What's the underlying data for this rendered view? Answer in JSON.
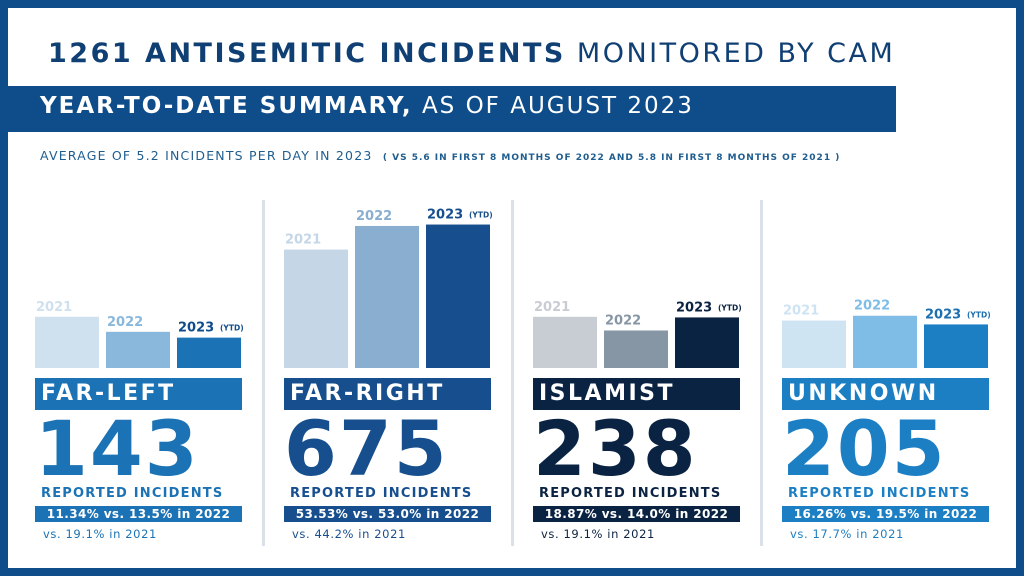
{
  "header": {
    "title_bold": "1261 ANTISEMITIC INCIDENTS",
    "title_rest": "MONITORED BY CAM",
    "banner_bold": "YEAR-TO-DATE SUMMARY,",
    "banner_rest": "AS OF AUGUST 2023",
    "average_text": "AVERAGE OF 5.2 INCIDENTS PER DAY IN 2023",
    "average_note": "( VS 5.6 IN FIRST 8 MONTHS OF 2022 AND 5.8 IN FIRST 8 MONTHS OF 2021 )"
  },
  "colors": {
    "frame": "#0f4c8a",
    "title": "#0f3f73"
  },
  "chart_data": [
    {
      "type": "bar",
      "panel": "far-left",
      "categories": [
        "2021",
        "2022",
        "2023"
      ],
      "ytd_label": "(YTD)",
      "values": [
        19.1,
        13.5,
        11.34
      ],
      "unit": "% of incidents",
      "category": "FAR-LEFT",
      "count": "143",
      "reported": "REPORTED INCIDENTS",
      "compare_2022": "11.34% vs. 13.5% in 2022",
      "compare_2021": "vs. 19.1% in 2021",
      "bar_colors": [
        "#cfe0ee",
        "#8ab8dc",
        "#1b72b4"
      ],
      "accent": "#1b72b4",
      "label_colors": [
        "#cfe0ee",
        "#8ab8dc",
        "#0f4c8a"
      ]
    },
    {
      "type": "bar",
      "panel": "far-right",
      "categories": [
        "2021",
        "2022",
        "2023"
      ],
      "ytd_label": "(YTD)",
      "values": [
        44.2,
        53.0,
        53.53
      ],
      "unit": "% of incidents",
      "category": "FAR-RIGHT",
      "count": "675",
      "reported": "REPORTED INCIDENTS",
      "compare_2022": "53.53% vs. 53.0% in 2022",
      "compare_2021": "vs. 44.2% in 2021",
      "bar_colors": [
        "#c5d6e6",
        "#8aaed0",
        "#174f8e"
      ],
      "accent": "#174f8e",
      "label_colors": [
        "#c5d6e6",
        "#8aaed0",
        "#174f8e"
      ]
    },
    {
      "type": "bar",
      "panel": "islamist",
      "categories": [
        "2021",
        "2022",
        "2023"
      ],
      "ytd_label": "(YTD)",
      "values": [
        19.1,
        14.0,
        18.87
      ],
      "unit": "% of incidents",
      "category": "ISLAMIST",
      "count": "238",
      "reported": "REPORTED INCIDENTS",
      "compare_2022": "18.87% vs. 14.0% in 2022",
      "compare_2021": "vs. 19.1% in 2021",
      "bar_colors": [
        "#c8cdd3",
        "#8796a5",
        "#0b2342"
      ],
      "accent": "#0b2342",
      "label_colors": [
        "#c8cdd3",
        "#8796a5",
        "#0b2342"
      ]
    },
    {
      "type": "bar",
      "panel": "unknown",
      "categories": [
        "2021",
        "2022",
        "2023"
      ],
      "ytd_label": "(YTD)",
      "values": [
        17.7,
        19.5,
        16.26
      ],
      "unit": "% of incidents",
      "category": "UNKNOWN",
      "count": "205",
      "reported": "REPORTED INCIDENTS",
      "compare_2022": "16.26% vs. 19.5% in 2022",
      "compare_2021": "vs. 17.7% in 2021",
      "bar_colors": [
        "#cfe4f3",
        "#7fbde6",
        "#1c7fc4"
      ],
      "accent": "#1c7fc4",
      "label_colors": [
        "#cfe4f3",
        "#7fbde6",
        "#1c6fb0"
      ]
    }
  ]
}
